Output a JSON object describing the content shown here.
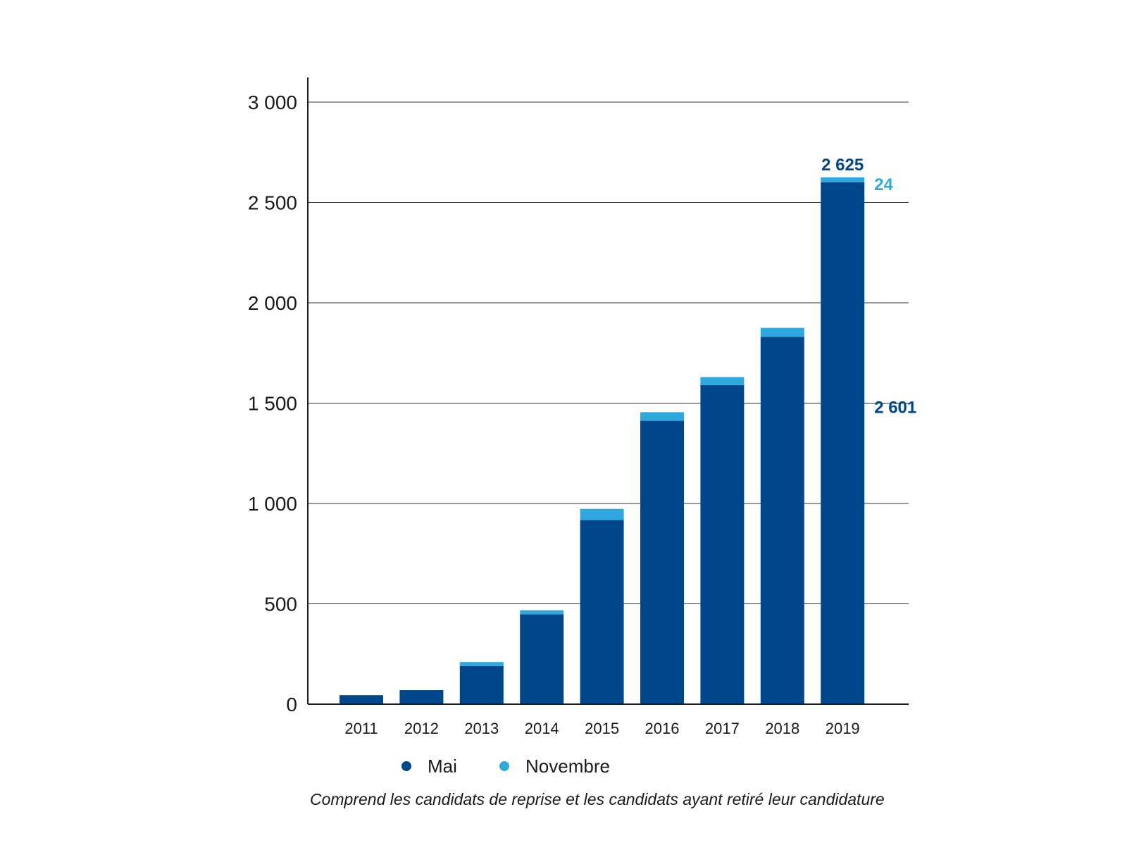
{
  "chart_data": {
    "type": "bar",
    "stacked": true,
    "categories": [
      "2011",
      "2012",
      "2013",
      "2014",
      "2015",
      "2016",
      "2017",
      "2018",
      "2019"
    ],
    "series": [
      {
        "name": "Mai",
        "color": "#00468b",
        "values": [
          45,
          70,
          190,
          448,
          918,
          1412,
          1590,
          1830,
          2601
        ]
      },
      {
        "name": "Novembre",
        "color": "#2fa8e0",
        "values": [
          0,
          0,
          20,
          20,
          55,
          43,
          40,
          45,
          24
        ]
      }
    ],
    "ylim": [
      0,
      3000
    ],
    "yticks": [
      0,
      500,
      1000,
      1500,
      2000,
      2500,
      3000
    ],
    "ytick_labels": [
      "0",
      "500",
      "1 000",
      "1 500",
      "2 000",
      "2 500",
      "3 000"
    ],
    "grid": true,
    "legend_position": "bottom",
    "annotations": {
      "total_2019": "2 625",
      "novembre_2019": "24",
      "mai_2019": "2 601"
    },
    "note": "Comprend les candidats de reprise et les candidats ayant retiré leur candidature"
  }
}
